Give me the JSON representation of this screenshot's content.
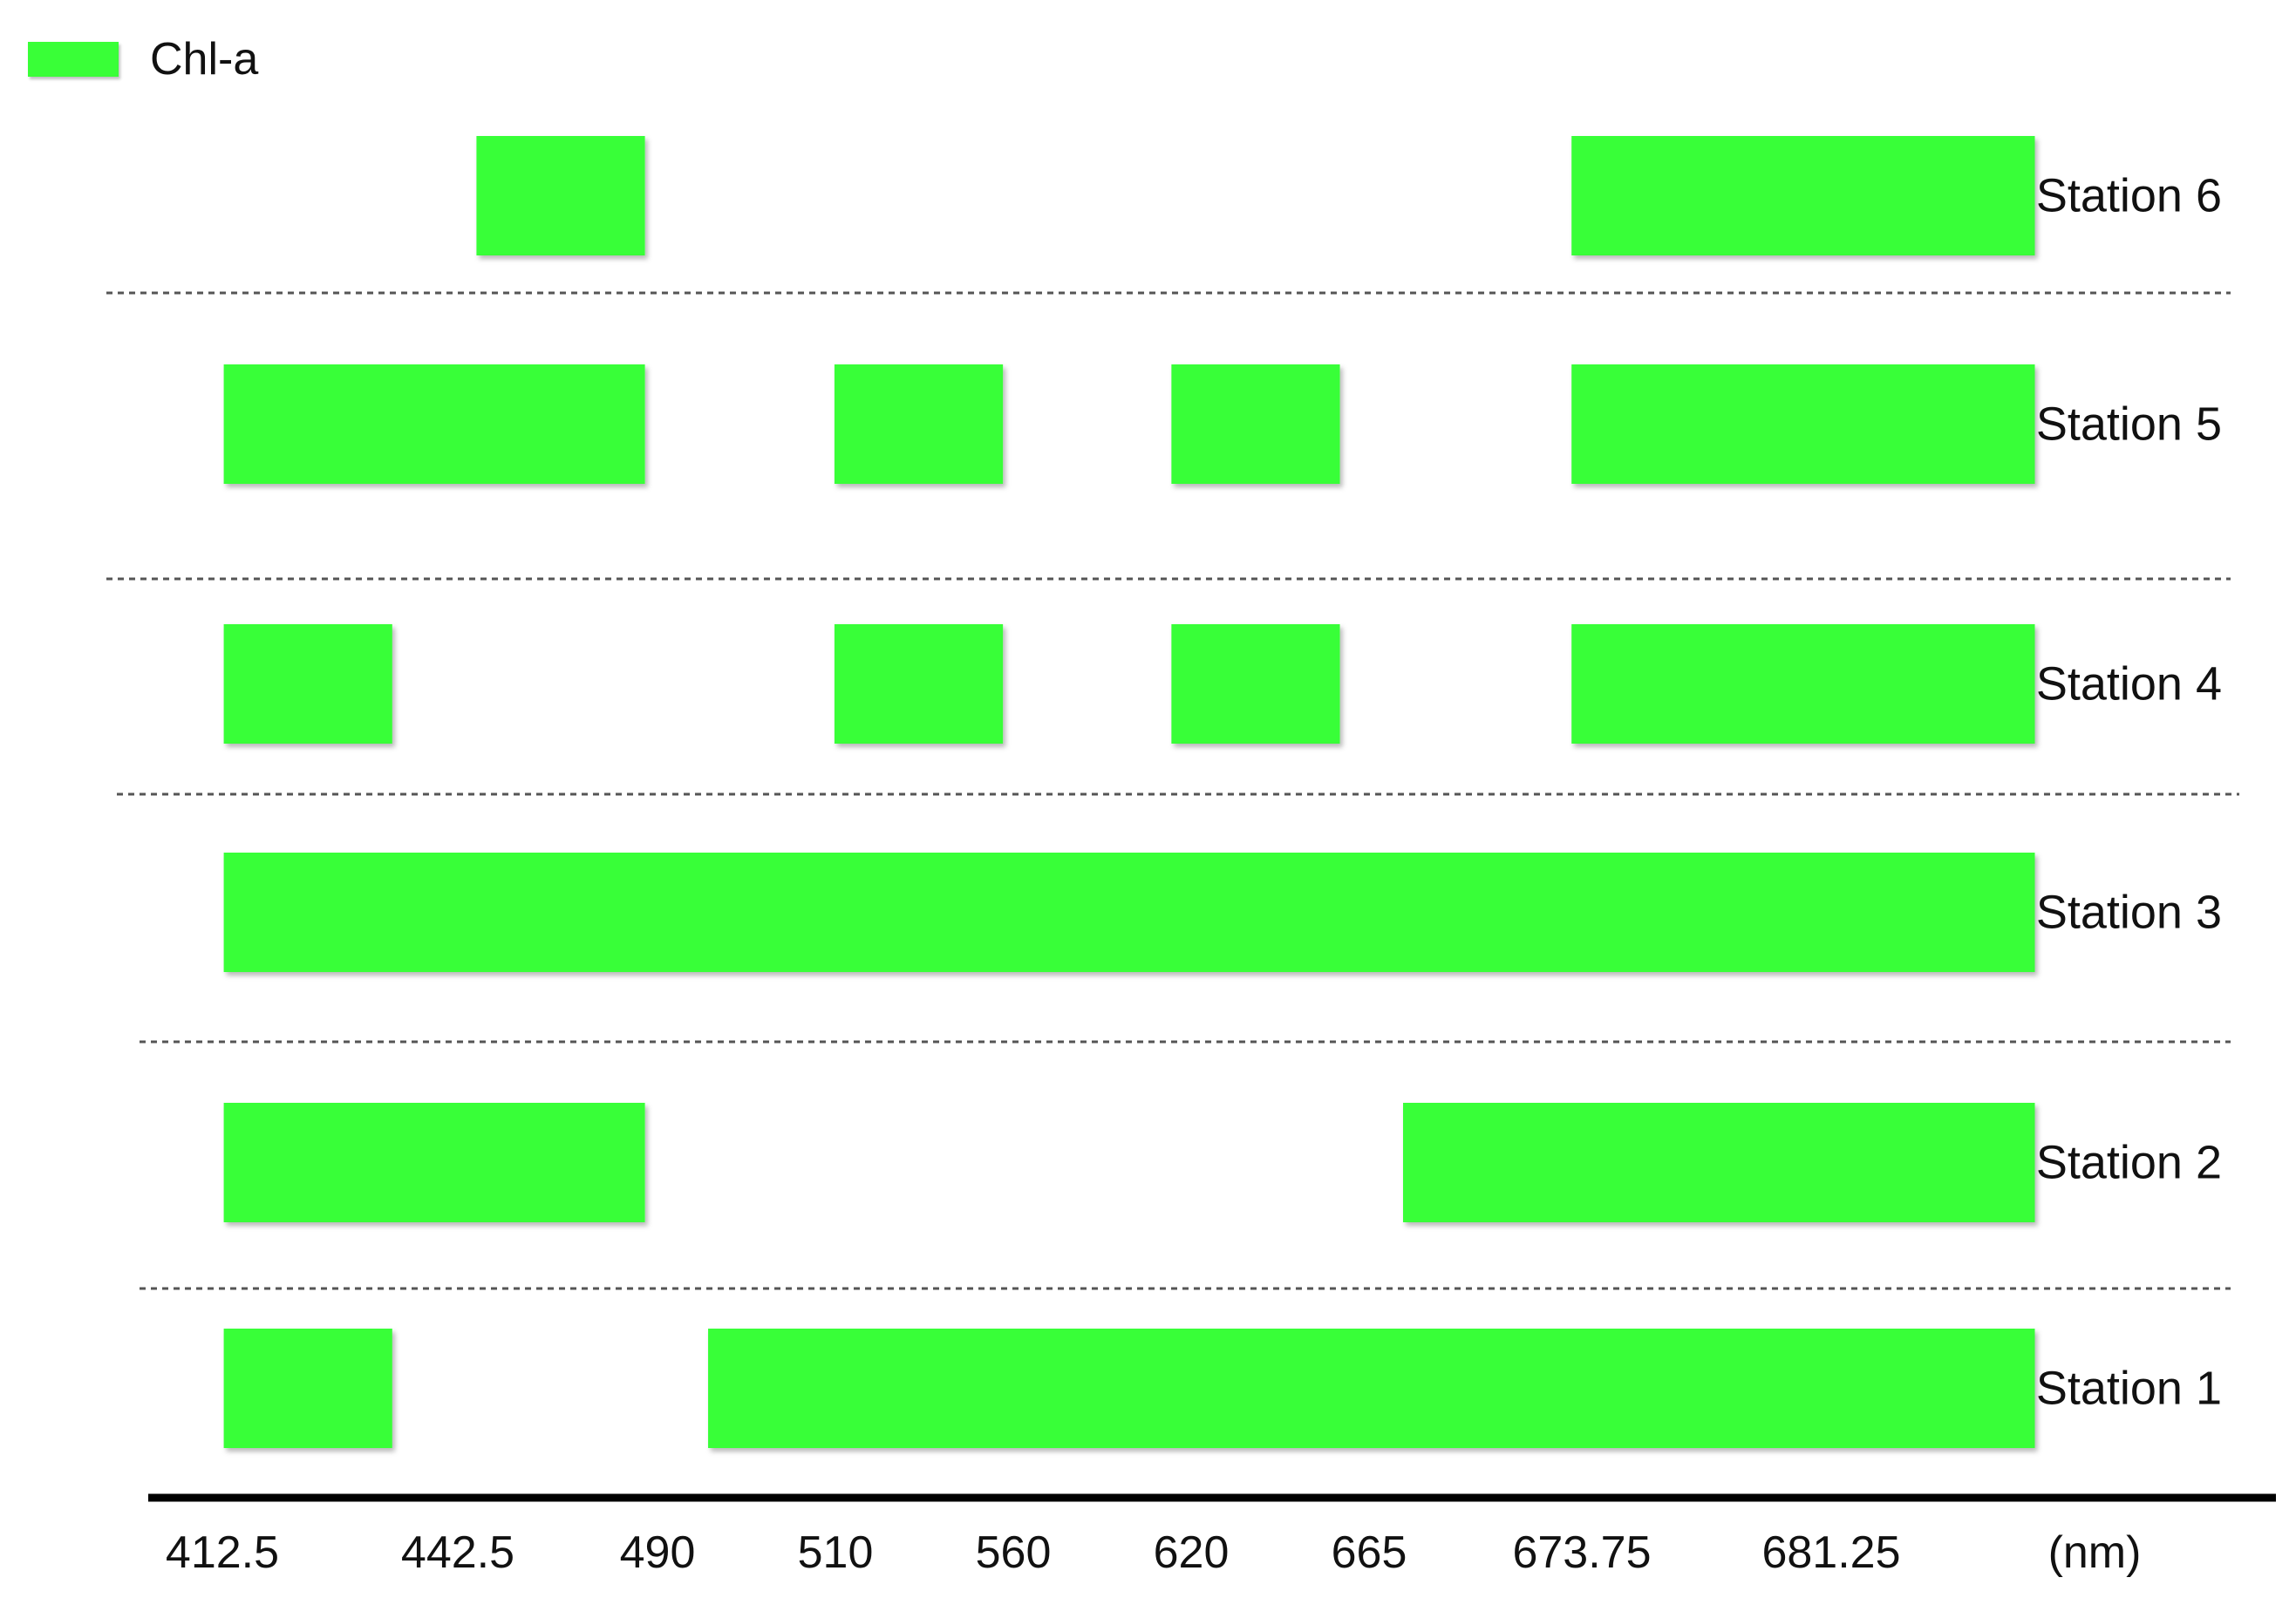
{
  "chart_data": {
    "type": "bar",
    "title": "",
    "xlabel": "",
    "ylabel": "",
    "legend": {
      "label": "Chl-a",
      "color": "#39ff37",
      "position": "top-left"
    },
    "x_unit_label": "(nm)",
    "categories": [
      "412.5",
      "442.5",
      "490",
      "510",
      "560",
      "620",
      "665",
      "673.75",
      "681.25"
    ],
    "series": [
      {
        "name": "Station 6",
        "segments": [
          [
            1.6,
            2.4
          ],
          [
            6.8,
            9.0
          ]
        ]
      },
      {
        "name": "Station 5",
        "segments": [
          [
            0.4,
            2.4
          ],
          [
            3.3,
            4.1
          ],
          [
            4.9,
            5.7
          ],
          [
            6.8,
            9.0
          ]
        ]
      },
      {
        "name": "Station 4",
        "segments": [
          [
            0.4,
            1.2
          ],
          [
            3.3,
            4.1
          ],
          [
            4.9,
            5.7
          ],
          [
            6.8,
            9.0
          ]
        ]
      },
      {
        "name": "Station 3",
        "segments": [
          [
            0.4,
            9.0
          ]
        ]
      },
      {
        "name": "Station 2",
        "segments": [
          [
            0.4,
            2.4
          ],
          [
            6.0,
            9.0
          ]
        ]
      },
      {
        "name": "Station 1",
        "segments": [
          [
            0.4,
            1.2
          ],
          [
            2.7,
            9.0
          ]
        ]
      }
    ],
    "grid": "dashed row separators"
  }
}
